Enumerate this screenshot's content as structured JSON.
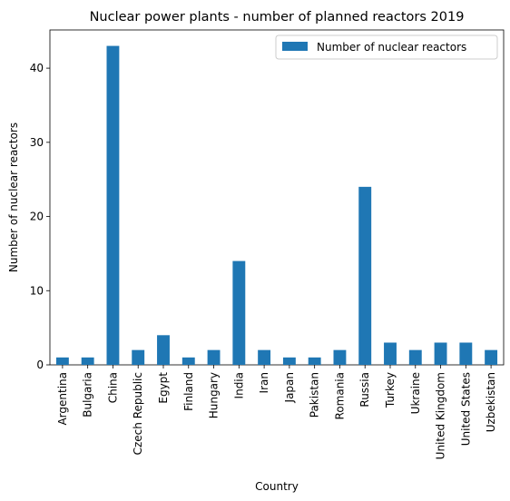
{
  "chart_data": {
    "type": "bar",
    "title": "Nuclear power plants - number of planned reactors 2019",
    "xlabel": "Country",
    "ylabel": "Number of nuclear reactors",
    "categories": [
      "Argentina",
      "Bulgaria",
      "China",
      "Czech Republic",
      "Egypt",
      "Finland",
      "Hungary",
      "India",
      "Iran",
      "Japan",
      "Pakistan",
      "Romania",
      "Russia",
      "Turkey",
      "Ukraine",
      "United Kingdom",
      "United States",
      "Uzbekistan"
    ],
    "series": [
      {
        "name": "Number of nuclear reactors",
        "color": "#1f77b4",
        "values": [
          1,
          1,
          43,
          2,
          4,
          1,
          2,
          14,
          2,
          1,
          1,
          2,
          24,
          3,
          2,
          3,
          3,
          2
        ]
      }
    ],
    "ylim": [
      0,
      45.15
    ],
    "yticks": [
      0,
      10,
      20,
      30,
      40
    ],
    "grid": false,
    "legend_position": "top-right"
  }
}
